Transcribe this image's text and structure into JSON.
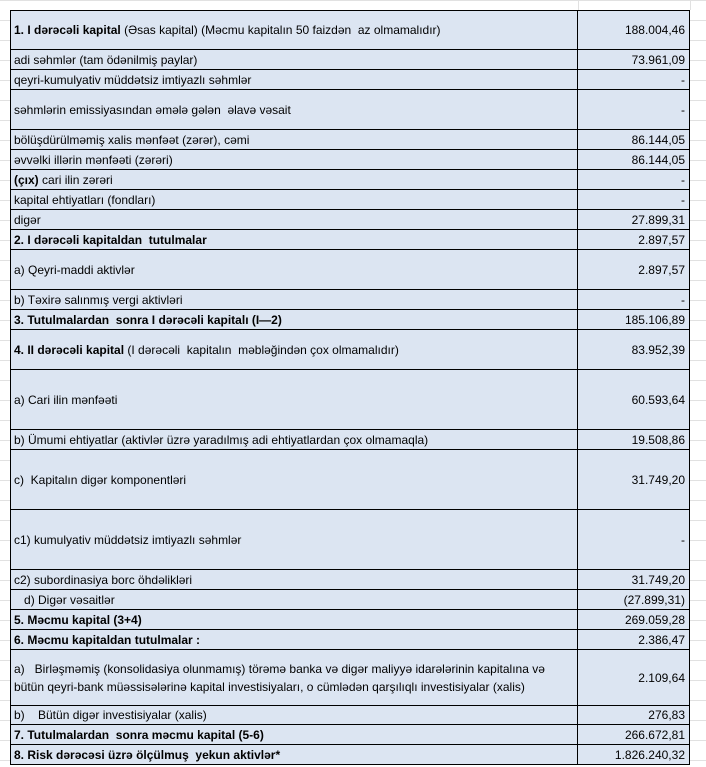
{
  "rows": [
    {
      "label_bold": "1. I dərəcəli kapital",
      "label": " (Əsas kapital) (Məcmu kapitalın 50 faizdən  az olmamalıdır)",
      "value": "188.004,46"
    },
    {
      "label": "adi səhmlər (tam ödənilmiş paylar)",
      "value": "73.961,09"
    },
    {
      "label": "qeyri-kumulyativ müddətsiz imtiyazlı səhmlər",
      "value": "-"
    },
    {
      "label": "səhmlərin emissiyasından əmələ gələn  əlavə vəsait",
      "value": "-"
    },
    {
      "label": "bölüşdürülməmiş xalis mənfəət (zərər), cəmi",
      "value": "86.144,05"
    },
    {
      "label": "əvvəlki illərin mənfəəti (zərəri)",
      "value": "86.144,05"
    },
    {
      "label_bold": "(çıx)",
      "label": " cari ilin zərəri",
      "value": "-"
    },
    {
      "label": "kapital ehtiyatları (fondları)",
      "value": "-"
    },
    {
      "label": "digər",
      "value": "27.899,31"
    },
    {
      "label_bold": "2. I dərəcəli kapitaldan  tutulmalar",
      "value": "2.897,57"
    },
    {
      "label": "a) Qeyri-maddi aktivlər",
      "value": "2.897,57"
    },
    {
      "label": "b) Təxirə salınmış vergi aktivləri",
      "value": "-"
    },
    {
      "label_bold": "3. Tutulmalardan  sonra I dərəcəli kapitalı (I—2)",
      "value": "185.106,89"
    },
    {
      "label_bold": "4. II dərəcəli kapital",
      "label": " (I dərəcəli  kapitalın  məbləğindən çox olmamalıdır)",
      "value": "83.952,39"
    },
    {
      "label": "a) Cari ilin mənfəəti",
      "value": "60.593,64"
    },
    {
      "label": "b) Ümumi ehtiyatlar (aktivlər üzrə yaradılmış adi ehtiyatlardan çox olmamaqla)",
      "value": "19.508,86"
    },
    {
      "label": "c)  Kapitalın digər komponentləri",
      "value": "31.749,20"
    },
    {
      "label": "c1) kumulyativ müddətsiz imtiyazlı səhmlər",
      "value": "-"
    },
    {
      "label": "c2) subordinasiya borc öhdəlikləri",
      "value": "31.749,20"
    },
    {
      "label": "   d) Digər vəsaitlər",
      "value": "(27.899,31)"
    },
    {
      "label_bold": "5. Məcmu kapital (3+4)",
      "value": "269.059,28"
    },
    {
      "label_bold": "6. Məcmu kapitaldan tutulmalar :",
      "value": "2.386,47"
    },
    {
      "label": "a)   Birləşməmiş (konsolidasiya olunmamış) törəmə banka və digər maliyyə idarələrinin kapitalına və bütün qeyri-bank müəssisələrinə kapital investisiyaları, o cümlədən qarşılıqlı investisiyalar (xalis)",
      "value": "2.109,64"
    },
    {
      "label": "b)    Bütün digər investisiyalar (xalis)",
      "value": "276,83"
    },
    {
      "label_bold": "7. Tutulmalardan  sonra məcmu kapital (5-6)",
      "value": "266.672,81"
    },
    {
      "label_bold": "8. Risk dərəcəsi üzrə ölçülmuş  yekun aktivlər*",
      "value": "1.826.240,32"
    }
  ]
}
